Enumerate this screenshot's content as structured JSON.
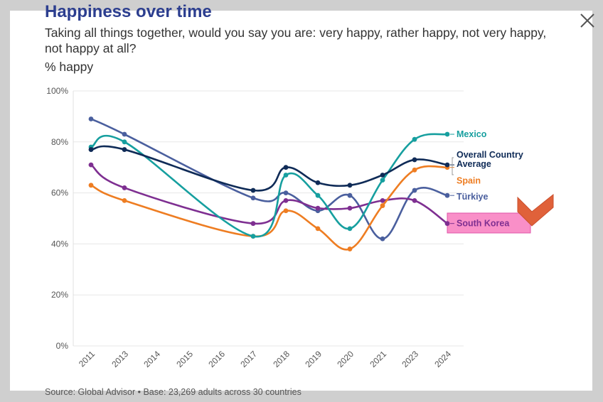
{
  "header": {
    "title": "Happiness over time",
    "subtitle": "Taking all things together, would you say you are: very happy, rather happy, not very happy, not happy at all?",
    "unit_label": "% happy"
  },
  "footer": {
    "source": "Source: Global Advisor • Base: 23,269 adults across 30 countries"
  },
  "close_icon": "close-icon",
  "chart_data": {
    "type": "line",
    "title": "Happiness over time",
    "ylabel": "% happy",
    "xlabel": "",
    "categories": [
      "2011",
      "2013",
      "2014",
      "2015",
      "2016",
      "2017",
      "2018",
      "2019",
      "2020",
      "2021",
      "2023",
      "2024"
    ],
    "y_ticks": [
      "0%",
      "20%",
      "40%",
      "60%",
      "80%",
      "100%"
    ],
    "ylim": [
      0,
      100
    ],
    "grid": true,
    "legend": "direct labels at right end of lines",
    "series": [
      {
        "name": "Mexico",
        "color": "#169f9f",
        "values": [
          78,
          80,
          null,
          null,
          null,
          43,
          67,
          59,
          46,
          65,
          81,
          83
        ]
      },
      {
        "name": "Overall Country Average",
        "color": "#0f2b57",
        "values": [
          77,
          77,
          null,
          null,
          null,
          61,
          70,
          64,
          63,
          67,
          73,
          71
        ]
      },
      {
        "name": "Spain",
        "color": "#ee7d22",
        "values": [
          63,
          57,
          null,
          null,
          null,
          43,
          53,
          46,
          38,
          55,
          69,
          70
        ]
      },
      {
        "name": "Türkiye",
        "color": "#4a5f9e",
        "values": [
          89,
          83,
          null,
          null,
          null,
          58,
          60,
          53,
          59,
          42,
          61,
          59
        ]
      },
      {
        "name": "South Korea",
        "color": "#7e2f91",
        "values": [
          71,
          62,
          null,
          null,
          null,
          48,
          57,
          54,
          54,
          57,
          57,
          48
        ],
        "highlighted": true,
        "highlight_color": "#f98fc8"
      }
    ]
  }
}
